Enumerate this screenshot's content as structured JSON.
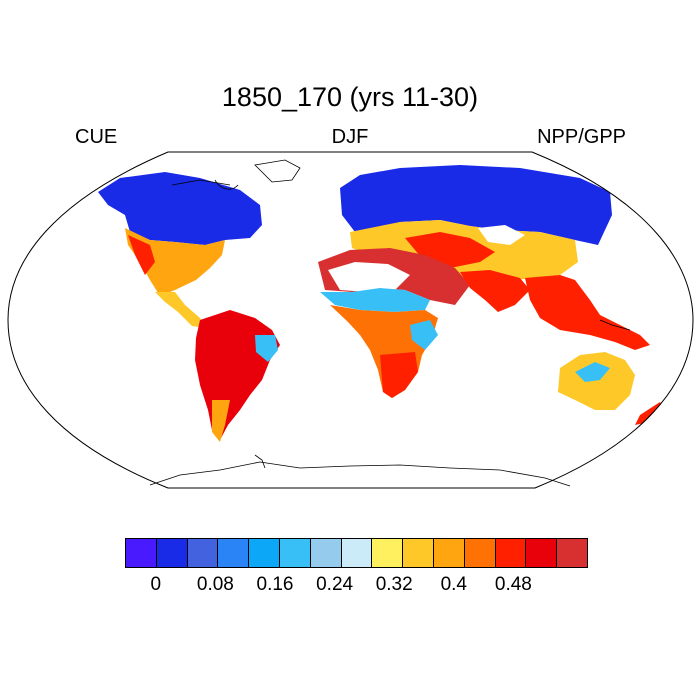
{
  "title": "1850_170 (yrs 11-30)",
  "left_label": "CUE",
  "center_label": "DJF",
  "right_label": "NPP/GPP",
  "colorbar": {
    "colors": [
      "#4a1aff",
      "#1a2be8",
      "#4262e0",
      "#2a84f5",
      "#0ca8f7",
      "#38c0f6",
      "#95ccee",
      "#ccebf9",
      "#fff060",
      "#fec828",
      "#fea510",
      "#fe7105",
      "#ff2000",
      "#e8000a",
      "#d83030"
    ],
    "tick_labels": [
      "0",
      "0.08",
      "0.16",
      "0.24",
      "0.32",
      "0.4",
      "0.48"
    ],
    "tick_values": [
      0,
      0.08,
      0.16,
      0.24,
      0.32,
      0.4,
      0.48
    ],
    "range": [
      -0.04,
      0.56
    ],
    "step": 0.04
  }
}
